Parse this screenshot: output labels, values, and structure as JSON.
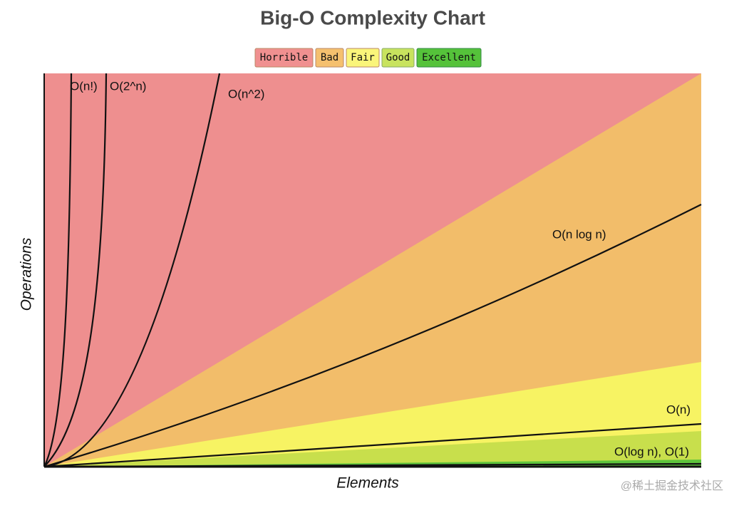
{
  "title": "Big-O Complexity Chart",
  "legend": [
    "Horrible",
    "Bad",
    "Fair",
    "Good",
    "Excellent"
  ],
  "axes": {
    "y": "Operations",
    "x": "Elements"
  },
  "curves": [
    "O(n!)",
    "O(2^n)",
    "O(n^2)",
    "O(n log n)",
    "O(n)",
    "O(log n), O(1)"
  ],
  "watermark": "@稀土掘金技术社区"
}
